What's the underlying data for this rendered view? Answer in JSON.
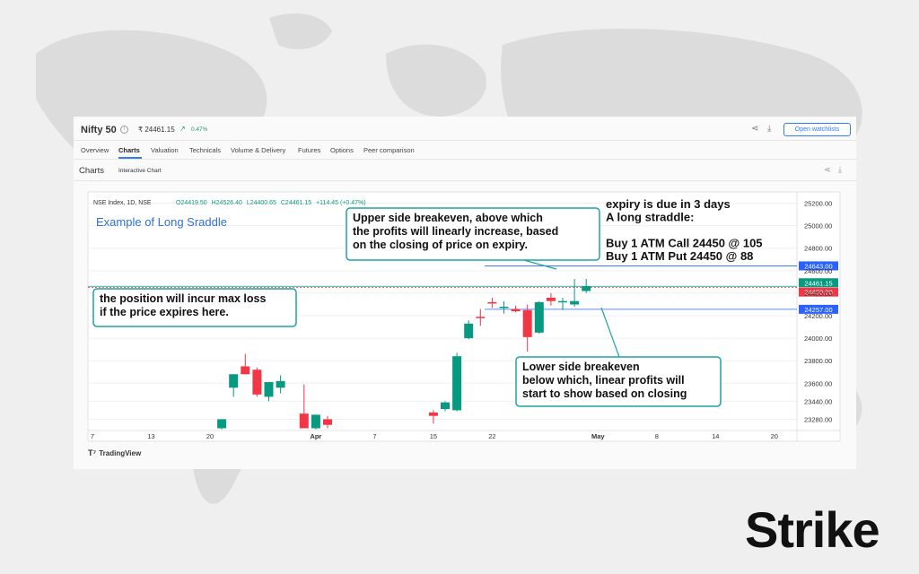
{
  "header": {
    "title": "Nifty 50",
    "price": "₹ 24461.15",
    "change": "0.47%",
    "watchlist_button": "Open watchlists"
  },
  "tabs": [
    {
      "label": "Overview"
    },
    {
      "label": "Charts",
      "active": true
    },
    {
      "label": "Valuation"
    },
    {
      "label": "Technicals"
    },
    {
      "label": "Volume & Delivery"
    },
    {
      "label": "Futures"
    },
    {
      "label": "Options"
    },
    {
      "label": "Peer comparison"
    }
  ],
  "section": {
    "title": "Charts",
    "subtitle": "Interactive Chart"
  },
  "chart_data": {
    "type": "candlestick",
    "title": "Example of Long Sraddle",
    "legend_text": "NSE Index, 1D, NSE",
    "ohlc_readout": {
      "o": "O24419.50",
      "h": "H24526.40",
      "l": "L24400.65",
      "c": "C24461.15",
      "chg": "+114.45 (+0.47%)"
    },
    "ylim": [
      23180,
      25300
    ],
    "y_ticks": [
      25200.0,
      25000.0,
      24800.0,
      24600.0,
      24400.0,
      24200.0,
      24000.0,
      23800.0,
      23600.0,
      23440.0,
      23280.0
    ],
    "x_ticks": [
      {
        "label": "7",
        "x": 0
      },
      {
        "label": "13",
        "x": 5
      },
      {
        "label": "20",
        "x": 10
      },
      {
        "label": "Apr",
        "x": 19
      },
      {
        "label": "7",
        "x": 24
      },
      {
        "label": "15",
        "x": 29
      },
      {
        "label": "22",
        "x": 34
      },
      {
        "label": "May",
        "x": 43
      },
      {
        "label": "8",
        "x": 48
      },
      {
        "label": "14",
        "x": 53
      },
      {
        "label": "20",
        "x": 58
      }
    ],
    "candles": [
      {
        "x": 11,
        "o": 23200,
        "h": 23280,
        "l": 23190,
        "c": 23280
      },
      {
        "x": 12,
        "o": 23560,
        "h": 23680,
        "l": 23480,
        "c": 23680
      },
      {
        "x": 13,
        "o": 23750,
        "h": 23860,
        "l": 23680,
        "c": 23680
      },
      {
        "x": 14,
        "o": 23720,
        "h": 23740,
        "l": 23480,
        "c": 23500
      },
      {
        "x": 15,
        "o": 23480,
        "h": 23610,
        "l": 23440,
        "c": 23610
      },
      {
        "x": 16,
        "o": 23560,
        "h": 23670,
        "l": 23510,
        "c": 23620
      },
      {
        "x": 18,
        "o": 23330,
        "h": 23590,
        "l": 23200,
        "c": 23200
      },
      {
        "x": 19,
        "o": 23200,
        "h": 23320,
        "l": 23190,
        "c": 23320
      },
      {
        "x": 20,
        "o": 23280,
        "h": 23310,
        "l": 23200,
        "c": 23230
      },
      {
        "x": 29,
        "o": 23340,
        "h": 23360,
        "l": 23240,
        "c": 23310
      },
      {
        "x": 30,
        "o": 23370,
        "h": 23440,
        "l": 23350,
        "c": 23430
      },
      {
        "x": 31,
        "o": 23360,
        "h": 23870,
        "l": 23350,
        "c": 23840
      },
      {
        "x": 32,
        "o": 24000,
        "h": 24160,
        "l": 23990,
        "c": 24130
      },
      {
        "x": 33,
        "o": 24190,
        "h": 24260,
        "l": 24110,
        "c": 24180
      },
      {
        "x": 34,
        "o": 24320,
        "h": 24360,
        "l": 24270,
        "c": 24310
      },
      {
        "x": 35,
        "o": 24280,
        "h": 24330,
        "l": 24220,
        "c": 24280
      },
      {
        "x": 36,
        "o": 24260,
        "h": 24290,
        "l": 24230,
        "c": 24240
      },
      {
        "x": 37,
        "o": 24250,
        "h": 24300,
        "l": 23880,
        "c": 24010
      },
      {
        "x": 38,
        "o": 24050,
        "h": 24330,
        "l": 24040,
        "c": 24320
      },
      {
        "x": 39,
        "o": 24360,
        "h": 24400,
        "l": 24290,
        "c": 24330
      },
      {
        "x": 40,
        "o": 24330,
        "h": 24360,
        "l": 24250,
        "c": 24330
      },
      {
        "x": 41,
        "o": 24300,
        "h": 24526,
        "l": 24280,
        "c": 24330
      },
      {
        "x": 42,
        "o": 24419.5,
        "h": 24526.4,
        "l": 24400.65,
        "c": 24461.15
      }
    ],
    "levels": [
      {
        "name": "upper-breakeven",
        "value": 24643.0,
        "label": "24643.00",
        "color": "#2962ff"
      },
      {
        "name": "last-price",
        "value": 24461.15,
        "label": "24461.15",
        "color": "#089981"
      },
      {
        "name": "strike",
        "value": 24450.0,
        "label": "24450.00",
        "color": "#f23645"
      },
      {
        "name": "lower-breakeven",
        "value": 24257.0,
        "label": "24257.00",
        "color": "#2962ff"
      }
    ],
    "colors": {
      "up": "#089981",
      "down": "#f23645",
      "annotation": "#1fa3a3"
    }
  },
  "annotations": {
    "upper": [
      "Upper side breakeven, above which",
      "the profits will linearly increase, based",
      "on the closing of price on expiry."
    ],
    "maxloss": [
      "the position will incur max loss",
      "if the price expires here."
    ],
    "lower": [
      "Lower side breakeven",
      "below which, linear profits will",
      "start to show based on closing"
    ],
    "strategy": [
      "expiry is due in 3 days",
      "A long straddle:",
      "",
      "Buy 1 ATM Call 24450 @ 105",
      "Buy 1 ATM Put 24450 @ 88"
    ]
  },
  "footer": {
    "provider": "TradingView",
    "brand": "Strike"
  }
}
